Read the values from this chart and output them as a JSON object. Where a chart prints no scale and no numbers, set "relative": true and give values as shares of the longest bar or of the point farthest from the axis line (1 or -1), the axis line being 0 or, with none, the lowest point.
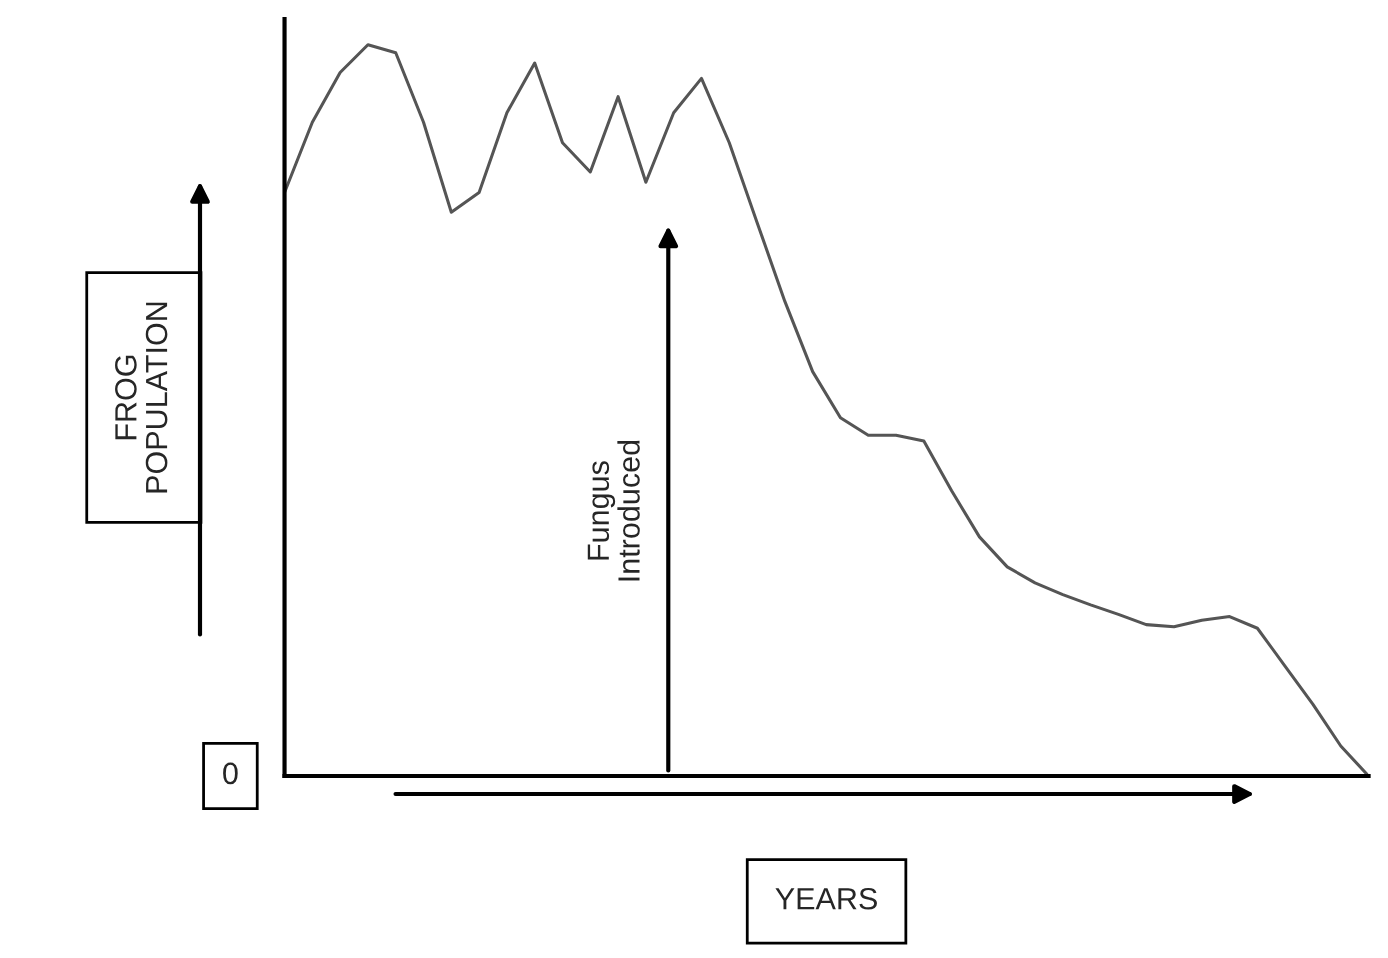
{
  "chart_data": {
    "type": "line",
    "relative": true,
    "xlabel": "YEARS",
    "ylabel": "FROG\nPOPULATION",
    "tick_labels": false,
    "legend": false,
    "marker": "none",
    "line_style": "solid",
    "categories": [
      null,
      null,
      null,
      null,
      null,
      null,
      null,
      null,
      null,
      null,
      null,
      null,
      null,
      null,
      null,
      null,
      null,
      null,
      null,
      null,
      null,
      null,
      null,
      null,
      null,
      null,
      null,
      null,
      null,
      null,
      null,
      null,
      null,
      null,
      null,
      null,
      null,
      null,
      null,
      null
    ],
    "series": [
      {
        "color": "#555555",
        "values": [
          0.798,
          0.894,
          0.962,
          1.0,
          0.989,
          0.894,
          0.771,
          0.798,
          0.907,
          0.975,
          0.866,
          0.826,
          0.929,
          0.812,
          0.907,
          0.954,
          0.866,
          0.757,
          0.649,
          0.553,
          0.49,
          0.466,
          0.466,
          0.458,
          0.39,
          0.327,
          0.286,
          0.264,
          0.248,
          0.234,
          0.221,
          0.207,
          0.204,
          0.213,
          0.218,
          0.202,
          0.15,
          0.098,
          0.041,
          0
        ]
      }
    ],
    "annotations": [
      "Fungus\nIntroduced",
      "0"
    ]
  }
}
